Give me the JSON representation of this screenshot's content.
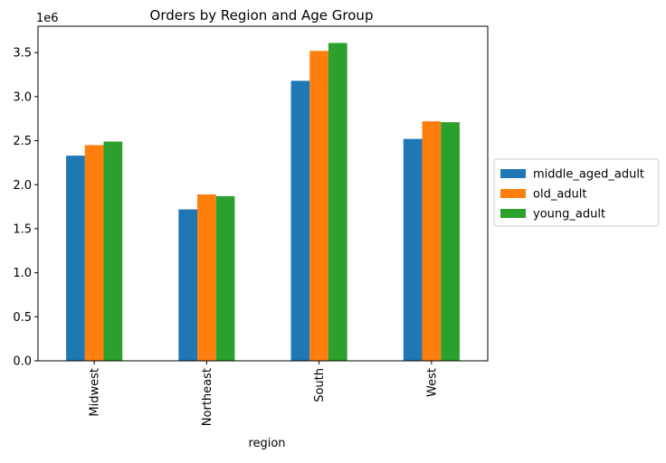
{
  "chart_data": {
    "type": "bar",
    "title": "Orders by Region and Age Group",
    "xlabel": "region",
    "ylabel": "",
    "y_offset_label": "1e6",
    "y_scale": 1000000,
    "categories": [
      "Midwest",
      "Northeast",
      "South",
      "West"
    ],
    "series": [
      {
        "name": "middle_aged_adult",
        "color": "#1f77b4",
        "values": [
          2330000,
          1720000,
          3180000,
          2520000
        ]
      },
      {
        "name": "old_adult",
        "color": "#ff7f0e",
        "values": [
          2450000,
          1890000,
          3520000,
          2720000
        ]
      },
      {
        "name": "young_adult",
        "color": "#2ca02c",
        "values": [
          2490000,
          1870000,
          3610000,
          2710000
        ]
      }
    ],
    "ylim": [
      0,
      3800000
    ],
    "yticks": [
      0,
      500000,
      1000000,
      1500000,
      2000000,
      2500000,
      3000000,
      3500000
    ],
    "ytick_labels": [
      "0.0",
      "0.5",
      "1.0",
      "1.5",
      "2.0",
      "2.5",
      "3.0",
      "3.5"
    ],
    "grid": false,
    "legend_position": "center-right-outside"
  }
}
